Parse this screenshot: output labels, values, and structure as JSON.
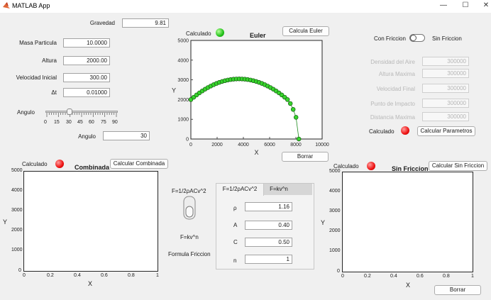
{
  "window": {
    "title": "MATLAB App",
    "minimize": "—",
    "maximize": "☐",
    "close": "✕"
  },
  "params": {
    "gravedad": {
      "label": "Gravedad",
      "value": "9.81"
    },
    "masa": {
      "label": "Masa Particula",
      "value": "10.0000"
    },
    "altura": {
      "label": "Altura",
      "value": "2000.00"
    },
    "velocidad": {
      "label": "Velocidad Inicial",
      "value": "300.00"
    },
    "dt": {
      "label": "Δt",
      "value": "0.01000"
    },
    "angulo_slider": {
      "label": "Angulo",
      "ticks": [
        "0",
        "15",
        "30",
        "45",
        "60",
        "75",
        "90"
      ],
      "value": 30
    },
    "angulo": {
      "label": "Angulo",
      "value": "30"
    }
  },
  "euler": {
    "status_label": "Calculado",
    "status_color": "#23c11a",
    "title": "Euler",
    "calc_button": "Calcula Euler",
    "clear_button": "Borrar",
    "xlabel": "X",
    "ylabel": "Y",
    "xticks": [
      "0",
      "2000",
      "4000",
      "6000",
      "8000",
      "10000"
    ],
    "yticks": [
      "0",
      "1000",
      "2000",
      "3000",
      "4000",
      "5000"
    ]
  },
  "toggle": {
    "left": "Con Friccion",
    "right": "Sin Friccion"
  },
  "results": {
    "densidad": {
      "label": "Densidad del Aire",
      "value": "300000"
    },
    "altura_max": {
      "label": "Altura Maxima",
      "value": "300000"
    },
    "vel_final": {
      "label": "Velocidad Final",
      "value": "300000"
    },
    "impacto": {
      "label": "Punto de Impacto",
      "value": "300000"
    },
    "distancia": {
      "label": "Distancia Maxima",
      "value": "300000"
    },
    "status_label": "Calculado",
    "calc_button": "Calcular Parametros"
  },
  "combinada": {
    "status_label": "Calculado",
    "title": "Combinada",
    "calc_button": "Calcular Combinada",
    "xlabel": "X",
    "ylabel": "Y",
    "xticks": [
      "0",
      "0.2",
      "0.4",
      "0.6",
      "0.8",
      "1"
    ],
    "yticks": [
      "0",
      "1000",
      "2000",
      "3000",
      "4000",
      "5000"
    ]
  },
  "friccion": {
    "top_label": "F=1/2ρACv^2",
    "bottom_label": "F=kv^n",
    "caption": "Formula Friccion",
    "tabs": [
      "F=1/2ρACv^2",
      "F=kv^n"
    ],
    "rho": {
      "label": "ρ",
      "value": "1.16"
    },
    "A": {
      "label": "A",
      "value": "0.40"
    },
    "C": {
      "label": "C",
      "value": "0.50"
    },
    "n": {
      "label": "n",
      "value": "1"
    }
  },
  "sinfriccion": {
    "status_label": "Calculado",
    "title": "Sin Friccion",
    "calc_button": "Calcular Sin Friccion",
    "clear_button": "Borrar",
    "xlabel": "X",
    "ylabel": "Y",
    "xticks": [
      "0",
      "0.2",
      "0.4",
      "0.6",
      "0.8",
      "1"
    ],
    "yticks": [
      "0",
      "1000",
      "2000",
      "3000",
      "4000",
      "5000"
    ]
  },
  "chart_data": {
    "type": "scatter",
    "title": "Euler",
    "xlabel": "X",
    "ylabel": "Y",
    "xlim": [
      0,
      10000
    ],
    "ylim": [
      0,
      5000
    ],
    "x": [
      0,
      217,
      433,
      650,
      866,
      1083,
      1299,
      1516,
      1732,
      1949,
      2165,
      2382,
      2598,
      2815,
      3031,
      3248,
      3464,
      3681,
      3897,
      4114,
      4330,
      4547,
      4763,
      4980,
      5196,
      5413,
      5629,
      5846,
      6062,
      6279,
      6495,
      6712,
      6928,
      7145,
      7361,
      7578,
      7794,
      8011,
      8227
    ],
    "y": [
      2000,
      2120,
      2233,
      2338,
      2436,
      2527,
      2610,
      2686,
      2755,
      2817,
      2871,
      2918,
      2958,
      2991,
      3016,
      3034,
      3045,
      3049,
      3045,
      3034,
      3016,
      2991,
      2958,
      2918,
      2871,
      2817,
      2755,
      2686,
      2610,
      2527,
      2436,
      2338,
      2233,
      2120,
      2000,
      1800,
      1500,
      1100,
      0
    ]
  }
}
